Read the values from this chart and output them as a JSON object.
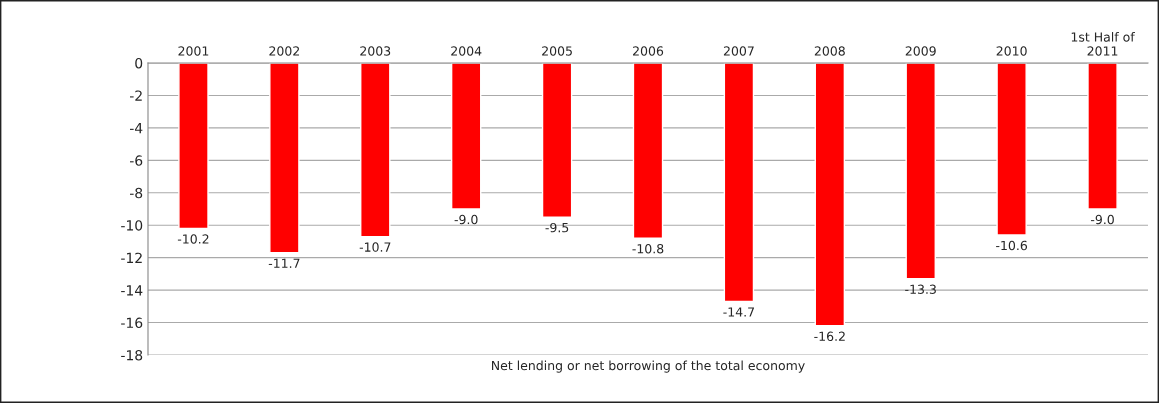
{
  "chart_data": {
    "type": "bar",
    "xlabel": "Net lending or net borrowing of the total economy",
    "categories": [
      "2001",
      "2002",
      "2003",
      "2004",
      "2005",
      "2006",
      "2007",
      "2008",
      "2009",
      "2010",
      "1st Half of\n2011"
    ],
    "values": [
      -10.2,
      -11.7,
      -10.7,
      -9.0,
      -9.5,
      -10.8,
      -14.7,
      -16.2,
      -13.3,
      -10.6,
      -9.0
    ],
    "value_labels": [
      "-10.2",
      "-11.7",
      "-10.7",
      "-9.0",
      "-9.5",
      "-10.8",
      "-14.7",
      "-16.2",
      "-13.3",
      "-10.6",
      "-9.0"
    ],
    "color": "#ff0000",
    "ylim": [
      -18,
      0
    ],
    "yticks": [
      -18,
      -16,
      -14,
      -12,
      -10,
      -8,
      -6,
      -4,
      -2,
      0
    ],
    "grid": "y"
  }
}
